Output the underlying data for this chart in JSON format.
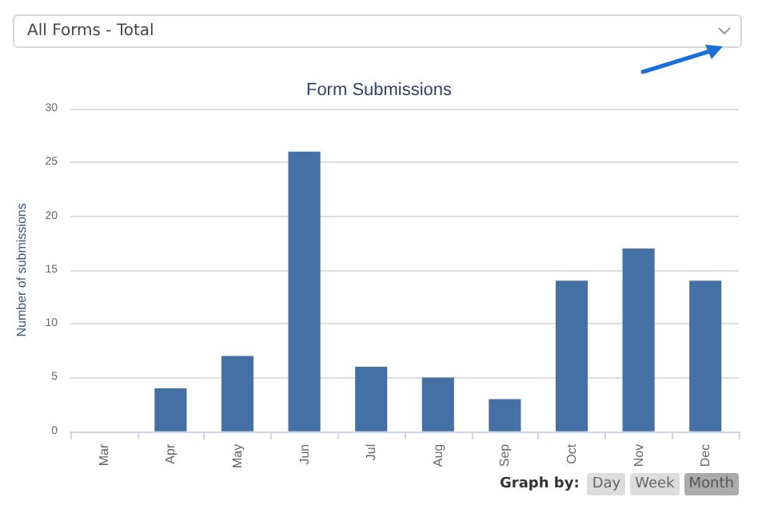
{
  "chart_data": {
    "type": "bar",
    "title": "Form Submissions",
    "ylabel": "Number of submissions",
    "categories": [
      "Mar",
      "Apr",
      "May",
      "Jun",
      "Jul",
      "Aug",
      "Sep",
      "Oct",
      "Nov",
      "Dec"
    ],
    "values": [
      0,
      4,
      7,
      26,
      6,
      5,
      3,
      14,
      17,
      14
    ],
    "color": "#4470a6",
    "ylim": [
      0,
      30
    ],
    "yticks": [
      0,
      5,
      10,
      15,
      20,
      25,
      30
    ],
    "grid": "y",
    "annotations": [
      "All Forms - Total",
      "Graph by:",
      "Day",
      "Week",
      "Month"
    ]
  }
}
